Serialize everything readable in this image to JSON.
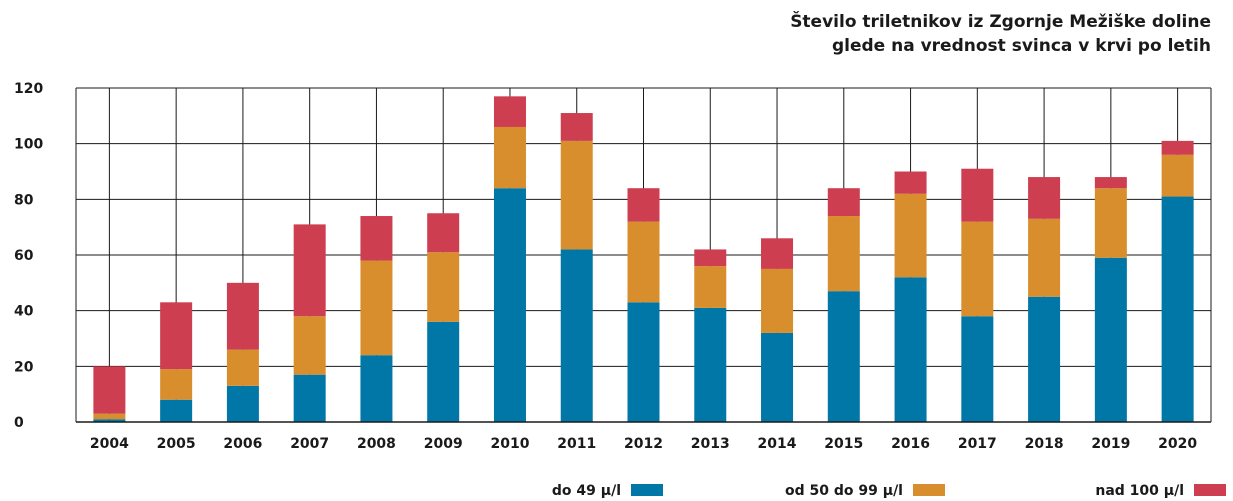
{
  "chart_data": {
    "type": "bar",
    "stacked": true,
    "title_lines": [
      "Število triletnikov iz Zgornje Mežiške doline",
      "glede na vrednost svinca v krvi po letih"
    ],
    "categories": [
      "2004",
      "2005",
      "2006",
      "2007",
      "2008",
      "2009",
      "2010",
      "2011",
      "2012",
      "2013",
      "2014",
      "2015",
      "2016",
      "2017",
      "2018",
      "2019",
      "2020"
    ],
    "series": [
      {
        "name": "do 49 µ/l",
        "color": "#0077a6",
        "values": [
          1,
          8,
          13,
          17,
          24,
          36,
          84,
          62,
          43,
          41,
          32,
          47,
          52,
          38,
          45,
          59,
          81
        ]
      },
      {
        "name": "od 50 do 99 µ/l",
        "color": "#d98e2e",
        "values": [
          2,
          11,
          13,
          21,
          34,
          25,
          22,
          39,
          29,
          15,
          23,
          27,
          30,
          34,
          28,
          25,
          15
        ]
      },
      {
        "name": "nad 100 µ/l",
        "color": "#cc3e50",
        "values": [
          17,
          24,
          24,
          33,
          16,
          14,
          11,
          10,
          12,
          6,
          11,
          10,
          8,
          19,
          15,
          4,
          5
        ]
      }
    ],
    "yticks": [
      0,
      20,
      40,
      60,
      80,
      100,
      120
    ],
    "ylim": [
      0,
      120
    ],
    "grid": true,
    "legend_position": "bottom"
  }
}
